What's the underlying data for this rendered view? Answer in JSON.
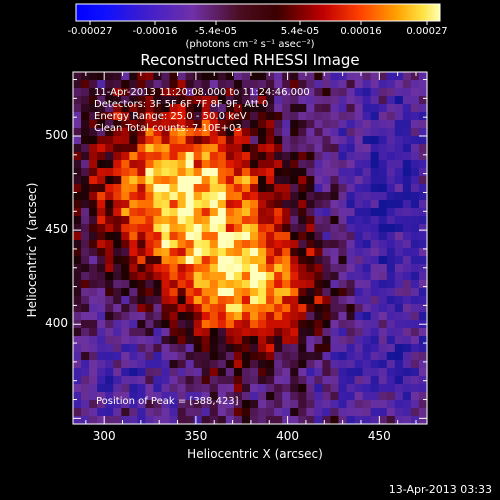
{
  "colorbar": {
    "tick_labels": [
      "-0.00027",
      "-0.00016",
      "-5.4e-05",
      "5.4e-05",
      "0.00016",
      "0.00027"
    ],
    "units": "(photons cm⁻² s⁻¹ asec⁻²)",
    "min": -0.00027,
    "max": 0.00027
  },
  "image": {
    "title": "Reconstructed RHESSI Image",
    "annotations": [
      "11-Apr-2013 11:20:08.000 to 11:24:46.000",
      "Detectors: 3F 5F 6F 7F 8F 9F, Att 0",
      "Energy Range: 25.0 - 50.0 keV",
      "Clean     Total counts: 7.10E+03"
    ],
    "peak_label": "Position of Peak = [388,423]",
    "peak_position": [
      388,
      423
    ]
  },
  "x_axis": {
    "label": "Heliocentric X (arcsec)",
    "range": [
      283,
      476
    ],
    "ticks": [
      300,
      350,
      400,
      450
    ],
    "tick_labels": [
      "300",
      "350",
      "400",
      "450"
    ]
  },
  "y_axis": {
    "label": "Heliocentric Y (arcsec)",
    "range": [
      347,
      534
    ],
    "ticks": [
      400,
      450,
      500
    ],
    "tick_labels": [
      "400",
      "450",
      "500"
    ]
  },
  "footer": {
    "timestamp": "13-Apr-2013 03:33"
  }
}
